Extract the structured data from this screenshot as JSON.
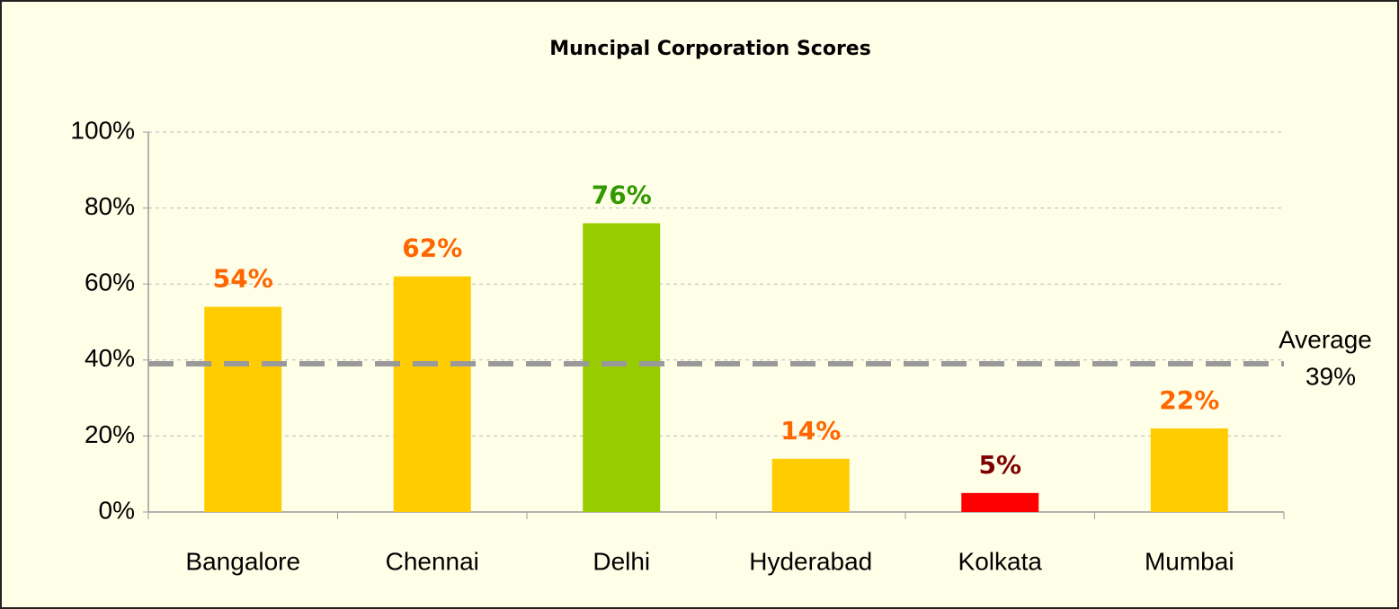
{
  "chart_data": {
    "type": "bar",
    "title": "Muncipal Corporation Scores",
    "categories": [
      "Bangalore",
      "Chennai",
      "Delhi",
      "Hyderabad",
      "Kolkata",
      "Mumbai"
    ],
    "values": [
      54,
      62,
      76,
      14,
      5,
      22
    ],
    "value_labels": [
      "54%",
      "62%",
      "76%",
      "14%",
      "5%",
      "22%"
    ],
    "colors": [
      "#ffcc00",
      "#ffcc00",
      "#99cc00",
      "#ffcc00",
      "#ff0000",
      "#ffcc00"
    ],
    "label_colors": [
      "#ff6600",
      "#ff6600",
      "#339900",
      "#ff6600",
      "#800000",
      "#ff6600"
    ],
    "ylim": [
      0,
      100
    ],
    "yticks": [
      {
        "value": 0,
        "label": "0%"
      },
      {
        "value": 20,
        "label": "20%"
      },
      {
        "value": 40,
        "label": "40%"
      },
      {
        "value": 60,
        "label": "60%"
      },
      {
        "value": 80,
        "label": "80%"
      },
      {
        "value": 100,
        "label": "100%"
      }
    ],
    "grid": true,
    "average": {
      "label": "Average",
      "value": 39,
      "value_label": "39%",
      "color": "#999999"
    }
  }
}
